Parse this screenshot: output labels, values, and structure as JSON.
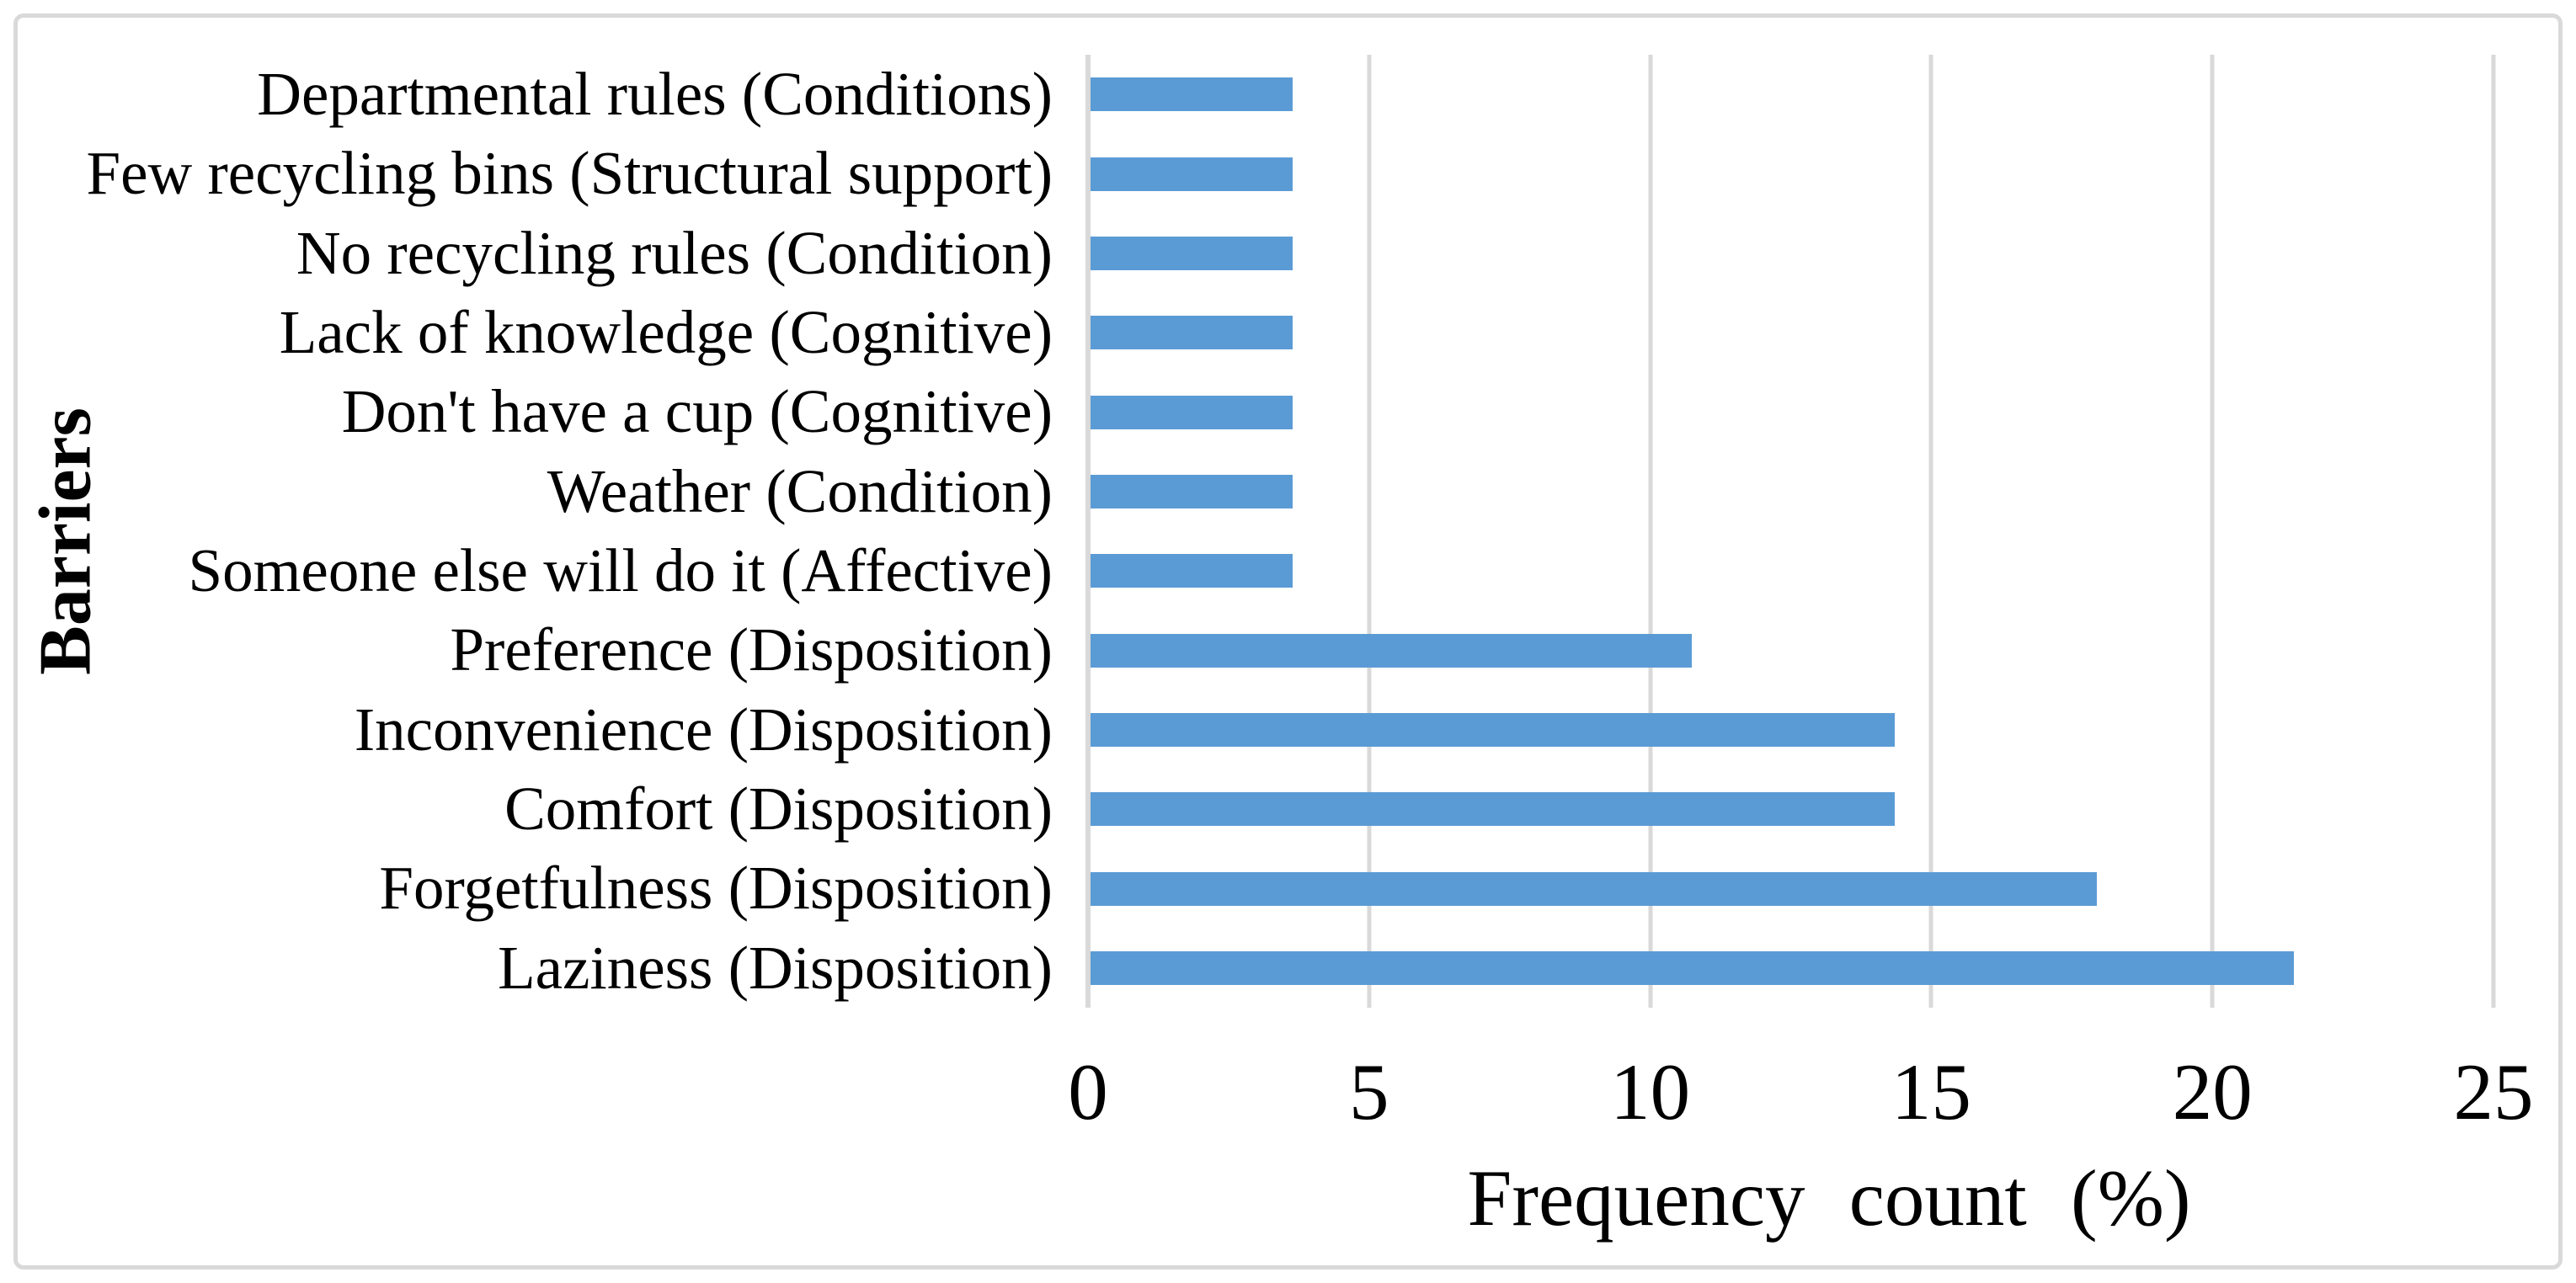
{
  "chart_data": {
    "type": "bar",
    "orientation": "horizontal",
    "title": "",
    "categories": [
      "Departmental rules (Conditions)",
      "Few recycling bins (Structural support)",
      "No recycling rules (Condition)",
      "Lack of knowledge (Cognitive)",
      "Don't have a cup (Cognitive)",
      "Weather (Condition)",
      "Someone else will do it (Affective)",
      "Preference (Disposition)",
      "Inconvenience (Disposition)",
      "Comfort (Disposition)",
      "Forgetfulness (Disposition)",
      "Laziness (Disposition)"
    ],
    "values": [
      3.6,
      3.6,
      3.6,
      3.6,
      3.6,
      3.6,
      3.6,
      10.7,
      14.3,
      14.3,
      17.9,
      21.4
    ],
    "xlabel": "Frequency count (%)",
    "ylabel": "Barriers",
    "xlim": [
      0,
      25
    ],
    "xticks": [
      0,
      5,
      10,
      15,
      20,
      25
    ],
    "xtick_labels": [
      "0",
      "5",
      "10",
      "15",
      "20",
      "25"
    ],
    "grid": "vertical-gridlines-on",
    "legend": "none",
    "bar_color": "#5B9BD5",
    "gridline_color": "#D9D9D9",
    "border_color": "#D9D9D9",
    "text_color": "#000000",
    "background_color": "#FFFFFF"
  }
}
